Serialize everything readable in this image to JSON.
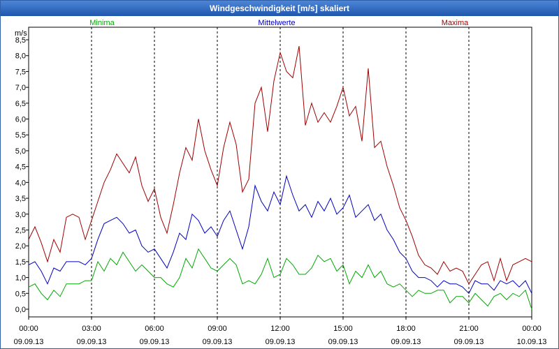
{
  "window": {
    "title": "Windgeschwindigkeit [m/s] skaliert"
  },
  "chart_data": {
    "type": "line",
    "title": "Windgeschwindigkeit [m/s] skaliert",
    "ylabel": "m/s",
    "ylim": [
      0,
      8.5
    ],
    "yticks": [
      "0,0",
      "0,5",
      "1,0",
      "1,5",
      "2,0",
      "2,5",
      "3,0",
      "3,5",
      "4,0",
      "4,5",
      "5,0",
      "5,5",
      "6,0",
      "6,5",
      "7,0",
      "7,5",
      "8,0",
      "8,5"
    ],
    "xlim_hours": [
      0,
      24
    ],
    "xticks": [
      {
        "time": "00:00",
        "date": "09.09.13"
      },
      {
        "time": "03:00",
        "date": "09.09.13"
      },
      {
        "time": "06:00",
        "date": "09.09.13"
      },
      {
        "time": "09:00",
        "date": "09.09.13"
      },
      {
        "time": "12:00",
        "date": "09.09.13"
      },
      {
        "time": "15:00",
        "date": "09.09.13"
      },
      {
        "time": "18:00",
        "date": "09.09.13"
      },
      {
        "time": "21:00",
        "date": "09.09.13"
      },
      {
        "time": "00:00",
        "date": "10.09.13"
      }
    ],
    "grid": true,
    "legend": "top",
    "series": [
      {
        "name": "Minima",
        "color": "#00aa00",
        "points": [
          [
            0,
            0.7
          ],
          [
            0.3,
            0.8
          ],
          [
            0.6,
            0.5
          ],
          [
            0.9,
            0.3
          ],
          [
            1.2,
            0.6
          ],
          [
            1.5,
            0.4
          ],
          [
            1.8,
            0.8
          ],
          [
            2.1,
            0.8
          ],
          [
            2.4,
            0.8
          ],
          [
            2.7,
            0.9
          ],
          [
            3.0,
            0.9
          ],
          [
            3.3,
            1.5
          ],
          [
            3.6,
            1.2
          ],
          [
            3.9,
            1.6
          ],
          [
            4.2,
            1.4
          ],
          [
            4.5,
            1.8
          ],
          [
            4.8,
            1.5
          ],
          [
            5.1,
            1.2
          ],
          [
            5.4,
            1.4
          ],
          [
            5.7,
            1.2
          ],
          [
            6.0,
            1.0
          ],
          [
            6.3,
            1.0
          ],
          [
            6.6,
            0.8
          ],
          [
            6.9,
            0.7
          ],
          [
            7.2,
            1.0
          ],
          [
            7.5,
            1.6
          ],
          [
            7.8,
            1.3
          ],
          [
            8.1,
            1.9
          ],
          [
            8.4,
            1.6
          ],
          [
            8.7,
            1.3
          ],
          [
            9.0,
            1.2
          ],
          [
            9.3,
            1.4
          ],
          [
            9.6,
            1.6
          ],
          [
            9.9,
            1.4
          ],
          [
            10.2,
            0.8
          ],
          [
            10.5,
            0.9
          ],
          [
            10.8,
            0.8
          ],
          [
            11.1,
            1.1
          ],
          [
            11.4,
            1.6
          ],
          [
            11.7,
            1.0
          ],
          [
            12.0,
            1.1
          ],
          [
            12.3,
            1.6
          ],
          [
            12.6,
            1.4
          ],
          [
            12.9,
            1.1
          ],
          [
            13.2,
            1.1
          ],
          [
            13.5,
            1.3
          ],
          [
            13.8,
            1.7
          ],
          [
            14.1,
            1.5
          ],
          [
            14.4,
            1.6
          ],
          [
            14.7,
            1.2
          ],
          [
            15.0,
            1.4
          ],
          [
            15.3,
            0.8
          ],
          [
            15.6,
            1.2
          ],
          [
            15.9,
            1.0
          ],
          [
            16.2,
            1.4
          ],
          [
            16.5,
            1.0
          ],
          [
            16.8,
            1.2
          ],
          [
            17.1,
            0.8
          ],
          [
            17.4,
            0.7
          ],
          [
            17.7,
            0.8
          ],
          [
            18.0,
            0.6
          ],
          [
            18.3,
            0.4
          ],
          [
            18.6,
            0.6
          ],
          [
            18.9,
            0.5
          ],
          [
            19.2,
            0.5
          ],
          [
            19.5,
            0.6
          ],
          [
            19.8,
            0.6
          ],
          [
            20.1,
            0.2
          ],
          [
            20.4,
            0.4
          ],
          [
            20.7,
            0.4
          ],
          [
            21.0,
            0.2
          ],
          [
            21.3,
            0.5
          ],
          [
            21.6,
            0.3
          ],
          [
            21.9,
            0.1
          ],
          [
            22.2,
            0.4
          ],
          [
            22.5,
            0.5
          ],
          [
            22.8,
            0.3
          ],
          [
            23.1,
            0.5
          ],
          [
            23.4,
            0.4
          ],
          [
            23.7,
            0.6
          ],
          [
            24.0,
            0.0
          ]
        ]
      },
      {
        "name": "Mittelwerte",
        "color": "#0000c0",
        "points": [
          [
            0,
            1.4
          ],
          [
            0.3,
            1.5
          ],
          [
            0.6,
            1.2
          ],
          [
            0.9,
            0.8
          ],
          [
            1.2,
            1.3
          ],
          [
            1.5,
            1.2
          ],
          [
            1.8,
            1.5
          ],
          [
            2.1,
            1.5
          ],
          [
            2.4,
            1.5
          ],
          [
            2.7,
            1.4
          ],
          [
            3.0,
            1.6
          ],
          [
            3.3,
            2.2
          ],
          [
            3.6,
            2.7
          ],
          [
            3.9,
            2.8
          ],
          [
            4.2,
            2.9
          ],
          [
            4.5,
            2.7
          ],
          [
            4.8,
            2.4
          ],
          [
            5.1,
            2.5
          ],
          [
            5.4,
            2.0
          ],
          [
            5.7,
            1.8
          ],
          [
            6.0,
            1.9
          ],
          [
            6.3,
            1.6
          ],
          [
            6.6,
            1.3
          ],
          [
            6.9,
            1.8
          ],
          [
            7.2,
            2.4
          ],
          [
            7.5,
            2.2
          ],
          [
            7.8,
            3.0
          ],
          [
            8.1,
            2.8
          ],
          [
            8.4,
            2.4
          ],
          [
            8.7,
            2.6
          ],
          [
            9.0,
            2.3
          ],
          [
            9.3,
            2.8
          ],
          [
            9.6,
            3.1
          ],
          [
            9.9,
            2.5
          ],
          [
            10.2,
            1.9
          ],
          [
            10.5,
            2.6
          ],
          [
            10.8,
            3.9
          ],
          [
            11.1,
            3.4
          ],
          [
            11.4,
            3.1
          ],
          [
            11.7,
            3.7
          ],
          [
            12.0,
            3.3
          ],
          [
            12.3,
            4.2
          ],
          [
            12.6,
            3.6
          ],
          [
            12.9,
            3.1
          ],
          [
            13.2,
            3.3
          ],
          [
            13.5,
            2.9
          ],
          [
            13.8,
            3.4
          ],
          [
            14.1,
            3.1
          ],
          [
            14.4,
            3.5
          ],
          [
            14.7,
            3.0
          ],
          [
            15.0,
            3.2
          ],
          [
            15.3,
            3.6
          ],
          [
            15.6,
            2.9
          ],
          [
            15.9,
            3.1
          ],
          [
            16.2,
            3.3
          ],
          [
            16.5,
            2.8
          ],
          [
            16.8,
            3.0
          ],
          [
            17.1,
            2.5
          ],
          [
            17.4,
            2.2
          ],
          [
            17.7,
            1.8
          ],
          [
            18.0,
            1.6
          ],
          [
            18.3,
            1.2
          ],
          [
            18.6,
            1.0
          ],
          [
            18.9,
            1.0
          ],
          [
            19.2,
            0.9
          ],
          [
            19.5,
            0.7
          ],
          [
            19.8,
            0.9
          ],
          [
            20.1,
            0.8
          ],
          [
            20.4,
            0.8
          ],
          [
            20.7,
            0.7
          ],
          [
            21.0,
            0.5
          ],
          [
            21.3,
            0.9
          ],
          [
            21.6,
            0.8
          ],
          [
            21.9,
            0.8
          ],
          [
            22.2,
            0.6
          ],
          [
            22.5,
            0.9
          ],
          [
            22.8,
            0.8
          ],
          [
            23.1,
            0.9
          ],
          [
            23.4,
            0.7
          ],
          [
            23.7,
            0.9
          ],
          [
            24.0,
            0.5
          ]
        ]
      },
      {
        "name": "Maxima",
        "color": "#a00000",
        "points": [
          [
            0,
            2.2
          ],
          [
            0.3,
            2.6
          ],
          [
            0.6,
            2.1
          ],
          [
            0.9,
            1.5
          ],
          [
            1.2,
            2.2
          ],
          [
            1.5,
            1.8
          ],
          [
            1.8,
            2.9
          ],
          [
            2.1,
            3.0
          ],
          [
            2.4,
            2.9
          ],
          [
            2.7,
            2.2
          ],
          [
            3.0,
            2.8
          ],
          [
            3.3,
            3.4
          ],
          [
            3.6,
            4.0
          ],
          [
            3.9,
            4.4
          ],
          [
            4.2,
            4.9
          ],
          [
            4.5,
            4.6
          ],
          [
            4.8,
            4.3
          ],
          [
            5.1,
            4.8
          ],
          [
            5.4,
            3.9
          ],
          [
            5.7,
            3.4
          ],
          [
            6.0,
            3.8
          ],
          [
            6.3,
            2.9
          ],
          [
            6.6,
            2.4
          ],
          [
            6.9,
            3.3
          ],
          [
            7.2,
            4.3
          ],
          [
            7.5,
            5.1
          ],
          [
            7.8,
            4.7
          ],
          [
            8.1,
            6.0
          ],
          [
            8.4,
            5.0
          ],
          [
            8.7,
            4.4
          ],
          [
            9.0,
            3.9
          ],
          [
            9.3,
            5.1
          ],
          [
            9.6,
            5.9
          ],
          [
            9.9,
            5.2
          ],
          [
            10.2,
            3.7
          ],
          [
            10.5,
            4.1
          ],
          [
            10.8,
            6.5
          ],
          [
            11.1,
            7.0
          ],
          [
            11.4,
            5.6
          ],
          [
            11.7,
            7.2
          ],
          [
            12.0,
            8.1
          ],
          [
            12.3,
            7.5
          ],
          [
            12.6,
            7.3
          ],
          [
            12.9,
            8.3
          ],
          [
            13.2,
            5.8
          ],
          [
            13.5,
            6.5
          ],
          [
            13.8,
            5.9
          ],
          [
            14.1,
            6.2
          ],
          [
            14.4,
            5.9
          ],
          [
            14.7,
            6.4
          ],
          [
            15.0,
            7.0
          ],
          [
            15.3,
            6.1
          ],
          [
            15.6,
            6.4
          ],
          [
            15.9,
            5.3
          ],
          [
            16.2,
            7.6
          ],
          [
            16.5,
            5.1
          ],
          [
            16.8,
            5.3
          ],
          [
            17.1,
            4.5
          ],
          [
            17.4,
            3.9
          ],
          [
            17.7,
            3.2
          ],
          [
            18.0,
            2.8
          ],
          [
            18.3,
            2.3
          ],
          [
            18.6,
            1.7
          ],
          [
            18.9,
            1.4
          ],
          [
            19.2,
            1.3
          ],
          [
            19.5,
            1.1
          ],
          [
            19.8,
            1.5
          ],
          [
            20.1,
            1.2
          ],
          [
            20.4,
            1.3
          ],
          [
            20.7,
            1.2
          ],
          [
            21.0,
            0.8
          ],
          [
            21.3,
            1.1
          ],
          [
            21.6,
            1.4
          ],
          [
            21.9,
            1.5
          ],
          [
            22.2,
            0.9
          ],
          [
            22.5,
            1.6
          ],
          [
            22.8,
            0.9
          ],
          [
            23.1,
            1.4
          ],
          [
            23.4,
            1.5
          ],
          [
            23.7,
            1.6
          ],
          [
            24.0,
            1.5
          ]
        ]
      }
    ]
  }
}
